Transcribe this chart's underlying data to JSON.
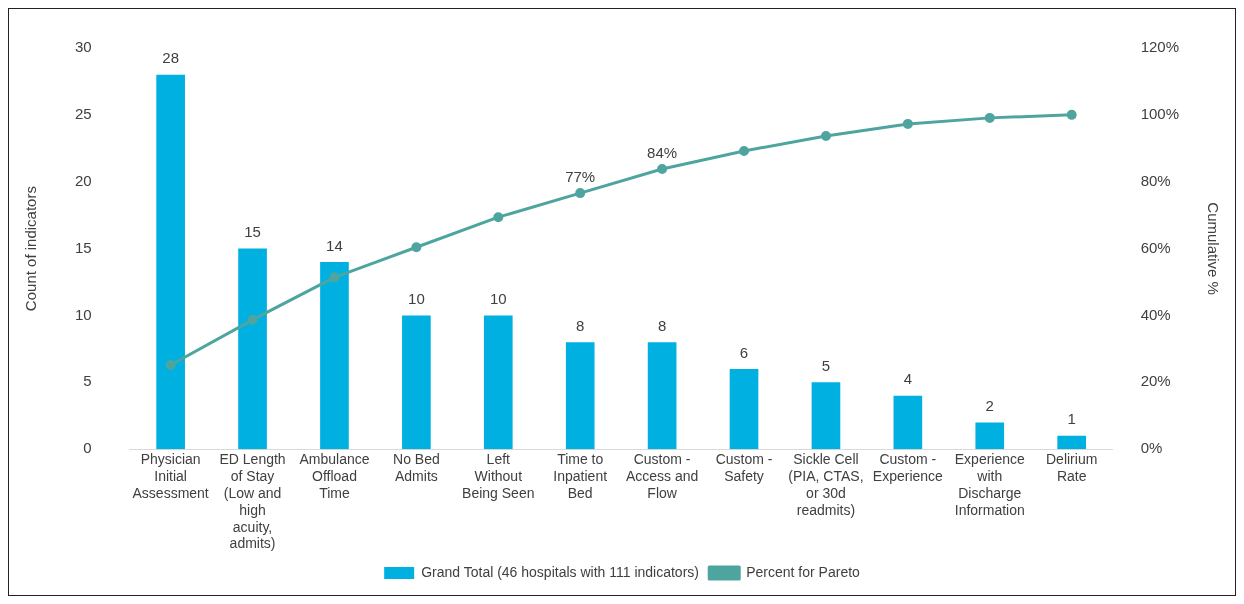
{
  "chart_data": {
    "type": "bar",
    "ylabel": "Count of indicators",
    "y2label": "Cumulative %",
    "categories": [
      "Physician Initial Assessment",
      "ED Length of Stay (Low and high acuity, admits)",
      "Ambulance Offload Time",
      "No Bed Admits",
      "Left Without Being Seen",
      "Time to Inpatient Bed",
      "Custom - Access and Flow",
      "Custom - Safety",
      "Sickle Cell (PIA, CTAS, or 30d readmits)",
      "Custom - Experience",
      "Experience with Discharge Information",
      "Delirium Rate"
    ],
    "series": [
      {
        "name": "Grand Total (46 hospitals with 111 indicators)",
        "color": "#00b0e0",
        "values": [
          28,
          15,
          14,
          10,
          10,
          8,
          8,
          6,
          5,
          4,
          2,
          1
        ],
        "value_labels": [
          "28",
          "15",
          "14",
          "10",
          "10",
          "8",
          "8",
          "6",
          "5",
          "4",
          "2",
          "1"
        ]
      },
      {
        "name": "Percent for Pareto",
        "type": "line",
        "axis": "y2",
        "color": "#4ea5a0",
        "values": [
          25.2,
          38.7,
          51.4,
          60.4,
          69.4,
          76.6,
          83.8,
          89.2,
          93.7,
          97.3,
          99.1,
          100
        ],
        "value_labels": [
          null,
          null,
          null,
          null,
          null,
          "77%",
          "84%",
          null,
          null,
          null,
          null,
          null
        ]
      }
    ],
    "ylim": [
      0,
      30
    ],
    "yticks": [
      0,
      5,
      10,
      15,
      20,
      25,
      30
    ],
    "y2lim": [
      0,
      120
    ],
    "y2ticks": [
      {
        "value": 0,
        "label": "0%"
      },
      {
        "value": 20,
        "label": "20%"
      },
      {
        "value": 40,
        "label": "40%"
      },
      {
        "value": 60,
        "label": "60%"
      },
      {
        "value": 80,
        "label": "80%"
      },
      {
        "value": 100,
        "label": "100%"
      },
      {
        "value": 120,
        "label": "120%"
      }
    ],
    "grid": false,
    "legend": "bottom",
    "marker": "circle",
    "line_style": "solid"
  }
}
